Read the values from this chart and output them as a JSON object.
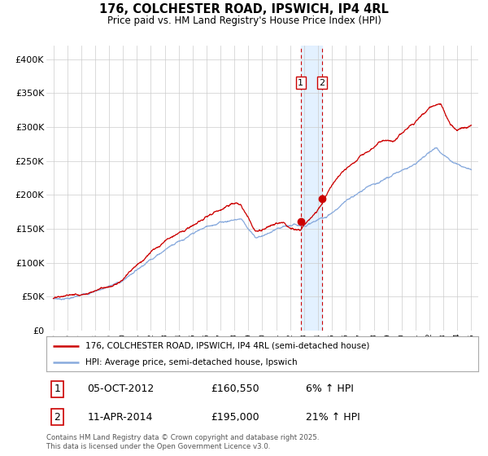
{
  "title": "176, COLCHESTER ROAD, IPSWICH, IP4 4RL",
  "subtitle": "Price paid vs. HM Land Registry's House Price Index (HPI)",
  "legend_line1": "176, COLCHESTER ROAD, IPSWICH, IP4 4RL (semi-detached house)",
  "legend_line2": "HPI: Average price, semi-detached house, Ipswich",
  "sale1_date": "05-OCT-2012",
  "sale1_price": "£160,550",
  "sale1_hpi": "6% ↑ HPI",
  "sale2_date": "11-APR-2014",
  "sale2_price": "£195,000",
  "sale2_hpi": "21% ↑ HPI",
  "footer": "Contains HM Land Registry data © Crown copyright and database right 2025.\nThis data is licensed under the Open Government Licence v3.0.",
  "property_color": "#cc0000",
  "hpi_color": "#88aadd",
  "sale1_x": 2012.75,
  "sale1_y": 160550,
  "sale2_x": 2014.27,
  "sale2_y": 195000,
  "ylim": [
    0,
    420000
  ],
  "xlim": [
    1994.5,
    2025.5
  ],
  "yticks": [
    0,
    50000,
    100000,
    150000,
    200000,
    250000,
    300000,
    350000,
    400000
  ],
  "ytick_labels": [
    "£0",
    "£50K",
    "£100K",
    "£150K",
    "£200K",
    "£250K",
    "£300K",
    "£350K",
    "£400K"
  ],
  "xticks": [
    1995,
    1996,
    1997,
    1998,
    1999,
    2000,
    2001,
    2002,
    2003,
    2004,
    2005,
    2006,
    2007,
    2008,
    2009,
    2010,
    2011,
    2012,
    2013,
    2014,
    2015,
    2016,
    2017,
    2018,
    2019,
    2020,
    2021,
    2022,
    2023,
    2024,
    2025
  ],
  "background_color": "#ffffff",
  "grid_color": "#cccccc",
  "shade_color": "#ddeeff"
}
